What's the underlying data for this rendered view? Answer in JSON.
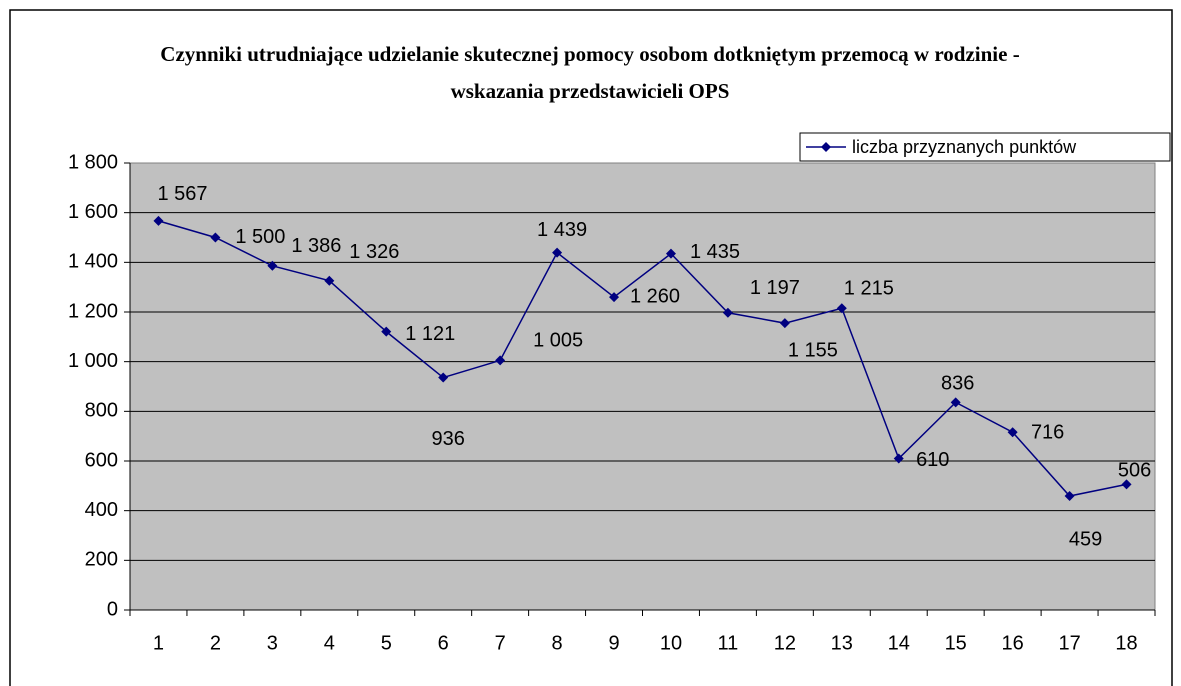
{
  "chart_data": {
    "type": "line",
    "title": "Czynniki utrudniające udzielanie skutecznej pomocy osobom dotkniętym przemocą w rodzinie - wskazania przedstawicieli OPS",
    "categories": [
      "1",
      "2",
      "3",
      "4",
      "5",
      "6",
      "7",
      "8",
      "9",
      "10",
      "11",
      "12",
      "13",
      "14",
      "15",
      "16",
      "17",
      "18"
    ],
    "series": [
      {
        "name": "liczba przyznanych punktów",
        "color": "#000080",
        "values": [
          1567,
          1500,
          1386,
          1326,
          1121,
          936,
          1005,
          1439,
          1260,
          1435,
          1197,
          1155,
          1215,
          610,
          836,
          716,
          459,
          506
        ],
        "value_labels": [
          "1 567",
          "1 500",
          "1 386",
          "1 326",
          "1 121",
          "936",
          "1 005",
          "1 439",
          "1 260",
          "1 435",
          "1 197",
          "1 155",
          "1 215",
          "610",
          "836",
          "716",
          "459",
          "506"
        ]
      }
    ],
    "ylim": [
      0,
      1800
    ],
    "yticks": [
      0,
      200,
      400,
      600,
      800,
      {
        "value": 1000,
        "label": "1 000"
      },
      {
        "value": 1200,
        "label": "1 200"
      },
      {
        "value": 1400,
        "label": "1 400"
      },
      {
        "value": 1600,
        "label": "1 600"
      },
      {
        "value": 1800,
        "label": "1 800"
      }
    ],
    "grid": true,
    "legend": "top-right",
    "plot_background": "#c0c0c0"
  }
}
